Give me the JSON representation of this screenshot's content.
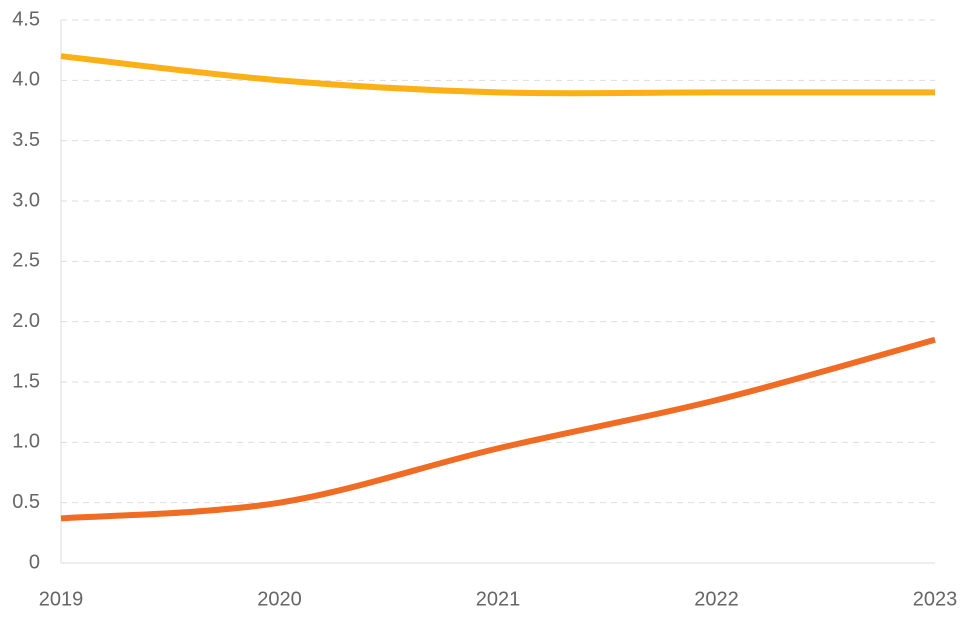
{
  "chart_data": {
    "type": "line",
    "categories": [
      "2019",
      "2020",
      "2021",
      "2022",
      "2023"
    ],
    "series": [
      {
        "color": "#fbb016",
        "values": [
          4.2,
          4.0,
          3.9,
          3.9,
          3.9
        ]
      },
      {
        "color": "#f06b23",
        "values": [
          0.37,
          0.5,
          0.95,
          1.35,
          1.85
        ]
      }
    ],
    "ylim": [
      0,
      4.5
    ],
    "yticks": [
      0,
      0.5,
      {
        "value": 1,
        "label": "1.0"
      },
      1.5,
      {
        "value": 2,
        "label": "2.0"
      },
      2.5,
      {
        "value": 3,
        "label": "3.0"
      },
      3.5,
      {
        "value": 4,
        "label": "4.0"
      },
      4.5
    ],
    "grid": true
  }
}
